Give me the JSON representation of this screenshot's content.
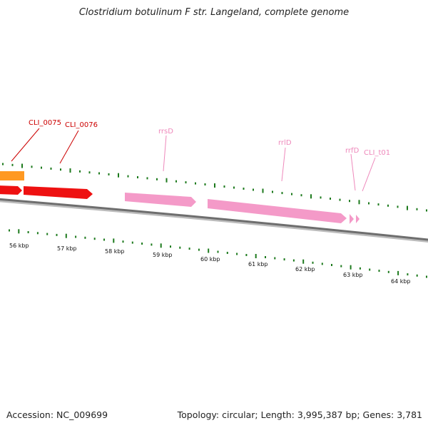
{
  "title": "Clostridium botulinum F str. Langeland, complete genome",
  "footer": {
    "accession": "Accession: NC_009699",
    "summary": "Topology: circular; Length: 3,995,387 bp; Genes: 3,781"
  },
  "colors": {
    "backbone": "#6e6e6e",
    "tick": "#1d7a1d",
    "cds": "#ee1111",
    "rrna": "#f49ac8",
    "misc": "#ff9922",
    "cds_label": "#cc0000",
    "rrna_label": "#ee88bb"
  },
  "scale": {
    "labels": [
      "56 kbp",
      "57 kbp",
      "58 kbp",
      "59 kbp",
      "60 kbp",
      "61 kbp",
      "62 kbp",
      "63 kbp",
      "64 kbp"
    ]
  },
  "gene_labels": [
    {
      "name": "CLI_0075",
      "kind": "cds"
    },
    {
      "name": "CLI_0076",
      "kind": "cds"
    },
    {
      "name": "rrsD",
      "kind": "rrna"
    },
    {
      "name": "rrlD",
      "kind": "rrna"
    },
    {
      "name": "rrfD",
      "kind": "rrna"
    },
    {
      "name": "CLI_t01",
      "kind": "rrna"
    }
  ]
}
